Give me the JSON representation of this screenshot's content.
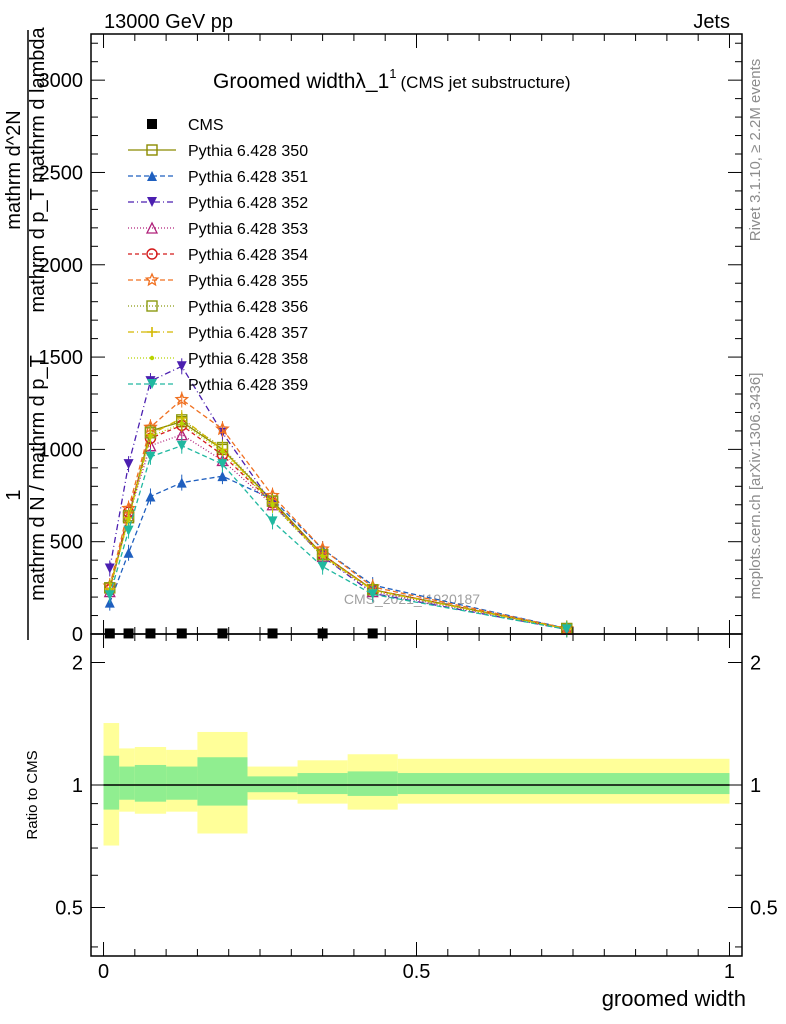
{
  "header": {
    "left": "13000 GeV pp",
    "right": "Jets"
  },
  "side_labels": {
    "rivet": "Rivet 3.1.10, ≥ 2.2M events",
    "mcplots": "mcplots.cern.ch [arXiv:1306.3436]"
  },
  "watermark": "CMS_2021_I1920187",
  "chart_data": [
    {
      "type": "line",
      "title": "Groomed widthλ_1",
      "title_sup": "1",
      "title_suffix": "(CMS jet substructure)",
      "ylabel_num_lines": [
        "mathrm d^2N",
        "mathrm d p_T mathrm d lambda"
      ],
      "ylabel_frac_num": "1",
      "ylabel_frac_den": "mathrm d N / mathrm d p_T",
      "ylim": [
        0,
        3250
      ],
      "xlim": [
        -0.02,
        1.02
      ],
      "yticks": [
        0,
        500,
        1000,
        1500,
        2000,
        2500,
        3000
      ],
      "x": [
        0.01,
        0.04,
        0.075,
        0.125,
        0.19,
        0.27,
        0.35,
        0.43,
        0.74
      ],
      "series": [
        {
          "name": "CMS",
          "color": "#000000",
          "marker": "square-filled",
          "dash": "",
          "values": [
            3,
            3,
            3,
            3,
            3,
            3,
            3,
            3,
            null
          ]
        },
        {
          "name": "Pythia 6.428 350",
          "color": "#8b8b00",
          "marker": "square-open",
          "dash": "",
          "values": [
            250,
            630,
            1100,
            1150,
            1000,
            720,
            430,
            240,
            30
          ]
        },
        {
          "name": "Pythia 6.428 351",
          "color": "#1f5fbf",
          "marker": "triangle-up-filled",
          "dash": "5,3",
          "values": [
            170,
            440,
            745,
            820,
            855,
            730,
            460,
            265,
            30
          ]
        },
        {
          "name": "Pythia 6.428 352",
          "color": "#4b1fb0",
          "marker": "triangle-down-filled",
          "dash": "6,3,1,3",
          "values": [
            355,
            920,
            1370,
            1450,
            1090,
            705,
            420,
            220,
            25
          ]
        },
        {
          "name": "Pythia 6.428 353",
          "color": "#b0207a",
          "marker": "triangle-up-open",
          "dash": "1,2",
          "values": [
            230,
            640,
            1020,
            1080,
            940,
            700,
            420,
            230,
            25
          ]
        },
        {
          "name": "Pythia 6.428 354",
          "color": "#d41a1a",
          "marker": "circle-open",
          "dash": "4,3",
          "values": [
            240,
            660,
            1060,
            1130,
            970,
            710,
            430,
            240,
            28
          ]
        },
        {
          "name": "Pythia 6.428 355",
          "color": "#f07020",
          "marker": "star-open",
          "dash": "5,3",
          "values": [
            260,
            680,
            1120,
            1270,
            1110,
            750,
            460,
            255,
            30
          ]
        },
        {
          "name": "Pythia 6.428 356",
          "color": "#8b9a10",
          "marker": "square-open",
          "dash": "1,2",
          "values": [
            250,
            640,
            1090,
            1160,
            1010,
            720,
            430,
            240,
            28
          ]
        },
        {
          "name": "Pythia 6.428 357",
          "color": "#d4b800",
          "marker": "cross",
          "dash": "6,3,1,3",
          "values": [
            245,
            630,
            1080,
            1170,
            1000,
            710,
            425,
            238,
            28
          ]
        },
        {
          "name": "Pythia 6.428 358",
          "color": "#b8d400",
          "marker": "dot",
          "dash": "1,2",
          "values": [
            240,
            620,
            1070,
            1140,
            990,
            700,
            420,
            235,
            27
          ]
        },
        {
          "name": "Pythia 6.428 359",
          "color": "#20b8a0",
          "marker": "triangle-down-filled",
          "dash": "5,3",
          "values": [
            210,
            560,
            960,
            1020,
            920,
            610,
            365,
            215,
            25
          ]
        }
      ]
    },
    {
      "type": "area",
      "ylabel": "Ratio to CMS",
      "xlabel": "groomed width",
      "ylim": [
        0.38,
        2.35
      ],
      "xlim": [
        -0.02,
        1.02
      ],
      "yticks": [
        0.5,
        1,
        2
      ],
      "xticks": [
        0,
        0.5,
        1
      ],
      "xtick_labels": [
        "0",
        "0.5",
        "1"
      ],
      "ytick_labels": [
        "0.5",
        "1",
        "2"
      ],
      "reference": 1,
      "bins": [
        {
          "lo": 0.0,
          "hi": 0.025,
          "inner": [
            0.87,
            1.18
          ],
          "outer": [
            0.71,
            1.42
          ]
        },
        {
          "lo": 0.025,
          "hi": 0.05,
          "inner": [
            0.92,
            1.11
          ],
          "outer": [
            0.86,
            1.23
          ]
        },
        {
          "lo": 0.05,
          "hi": 0.1,
          "inner": [
            0.91,
            1.12
          ],
          "outer": [
            0.85,
            1.24
          ]
        },
        {
          "lo": 0.1,
          "hi": 0.15,
          "inner": [
            0.92,
            1.11
          ],
          "outer": [
            0.86,
            1.22
          ]
        },
        {
          "lo": 0.15,
          "hi": 0.23,
          "inner": [
            0.89,
            1.17
          ],
          "outer": [
            0.76,
            1.35
          ]
        },
        {
          "lo": 0.23,
          "hi": 0.31,
          "inner": [
            0.96,
            1.05
          ],
          "outer": [
            0.92,
            1.11
          ]
        },
        {
          "lo": 0.31,
          "hi": 0.39,
          "inner": [
            0.95,
            1.07
          ],
          "outer": [
            0.9,
            1.15
          ]
        },
        {
          "lo": 0.39,
          "hi": 0.47,
          "inner": [
            0.94,
            1.08
          ],
          "outer": [
            0.87,
            1.19
          ]
        },
        {
          "lo": 0.47,
          "hi": 1.0,
          "inner": [
            0.95,
            1.07
          ],
          "outer": [
            0.9,
            1.16
          ]
        }
      ],
      "inner_color": "#90ee90",
      "outer_color": "#ffff99"
    }
  ]
}
